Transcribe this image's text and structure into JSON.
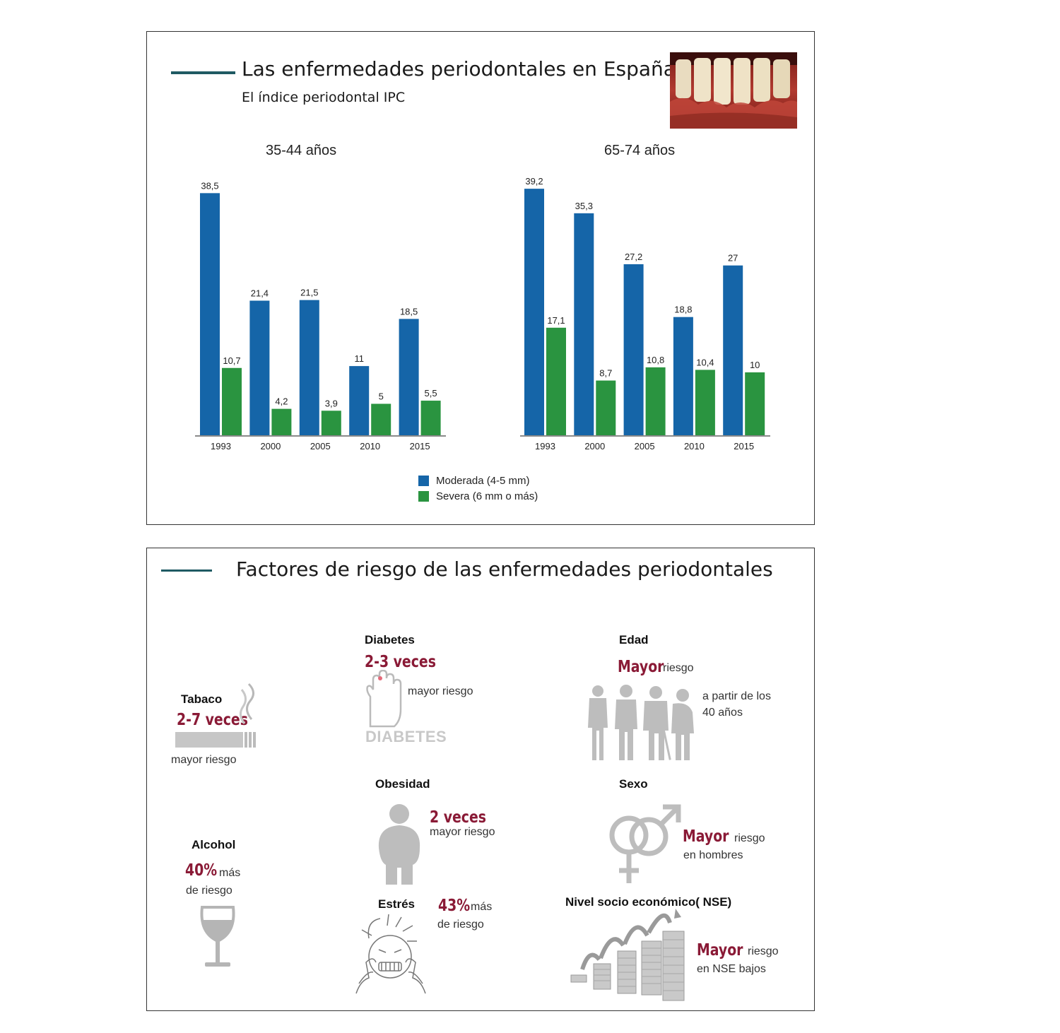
{
  "slide1": {
    "title": "Las enfermedades periodontales en España",
    "subtitle": "El índice periodontal IPC",
    "photo_icon": "gums-photo-icon"
  },
  "chart_data": [
    {
      "type": "bar",
      "title": "35-44 años",
      "categories": [
        "1993",
        "2000",
        "2005",
        "2010",
        "2015"
      ],
      "series": [
        {
          "name": "Moderada (4-5 mm)",
          "values": [
            38.5,
            21.4,
            21.5,
            11,
            18.5
          ],
          "labels": [
            "38,5",
            "21,4",
            "21,5",
            "11",
            "18,5"
          ],
          "color": "#1565a8"
        },
        {
          "name": "Severa (6 mm o más)",
          "values": [
            10.7,
            4.2,
            3.9,
            5,
            5.5
          ],
          "labels": [
            "10,7",
            "4,2",
            "3,9",
            "5",
            "5,5"
          ],
          "color": "#2a9440"
        }
      ]
    },
    {
      "type": "bar",
      "title": "65-74 años",
      "categories": [
        "1993",
        "2000",
        "2005",
        "2010",
        "2015"
      ],
      "series": [
        {
          "name": "Moderada (4-5 mm)",
          "values": [
            39.2,
            35.3,
            27.2,
            18.8,
            27
          ],
          "labels": [
            "39,2",
            "35,3",
            "27,2",
            "18,8",
            "27"
          ],
          "color": "#1565a8"
        },
        {
          "name": "Severa (6 mm o más)",
          "values": [
            17.1,
            8.7,
            10.8,
            10.4,
            10
          ],
          "labels": [
            "17,1",
            "8,7",
            "10,8",
            "10,4",
            "10"
          ],
          "color": "#2a9440"
        }
      ]
    }
  ],
  "legend": {
    "moderate": "Moderada (4-5 mm)",
    "severe": "Severa (6 mm o más)"
  },
  "slide2": {
    "title": "Factores de riesgo de las enfermedades periodontales",
    "tabaco": {
      "name": "Tabaco",
      "value": "2-7 veces",
      "text": "mayor riesgo",
      "icon": "cigarette-icon"
    },
    "alcohol": {
      "name": "Alcohol",
      "value": "40%",
      "text1": "más",
      "text2": "de riesgo",
      "icon": "wine-glass-icon"
    },
    "diabetes": {
      "name": "Diabetes",
      "value": "2-3 veces",
      "text": "mayor riesgo",
      "logo": "DIABETES",
      "icon": "hand-icon"
    },
    "obesidad": {
      "name": "Obesidad",
      "value": "2 veces",
      "text": "mayor riesgo",
      "icon": "obese-person-icon"
    },
    "estres": {
      "name": "Estrés",
      "value": "43%",
      "text1": "más",
      "text2": "de riesgo",
      "icon": "stressed-face-icon"
    },
    "edad": {
      "name": "Edad",
      "value": "Mayor",
      "text": "riesgo",
      "text2": "a partir de los",
      "text3": "40 años",
      "icon": "aging-people-icon"
    },
    "sexo": {
      "name": "Sexo",
      "value": "Mayor",
      "text": "riesgo",
      "text2": "en hombres",
      "icon": "gender-symbols-icon"
    },
    "nse": {
      "name": "Nivel socio económico( NSE)",
      "value": "Mayor",
      "text": "riesgo",
      "text2": "en NSE bajos",
      "icon": "coin-stacks-icon"
    }
  }
}
